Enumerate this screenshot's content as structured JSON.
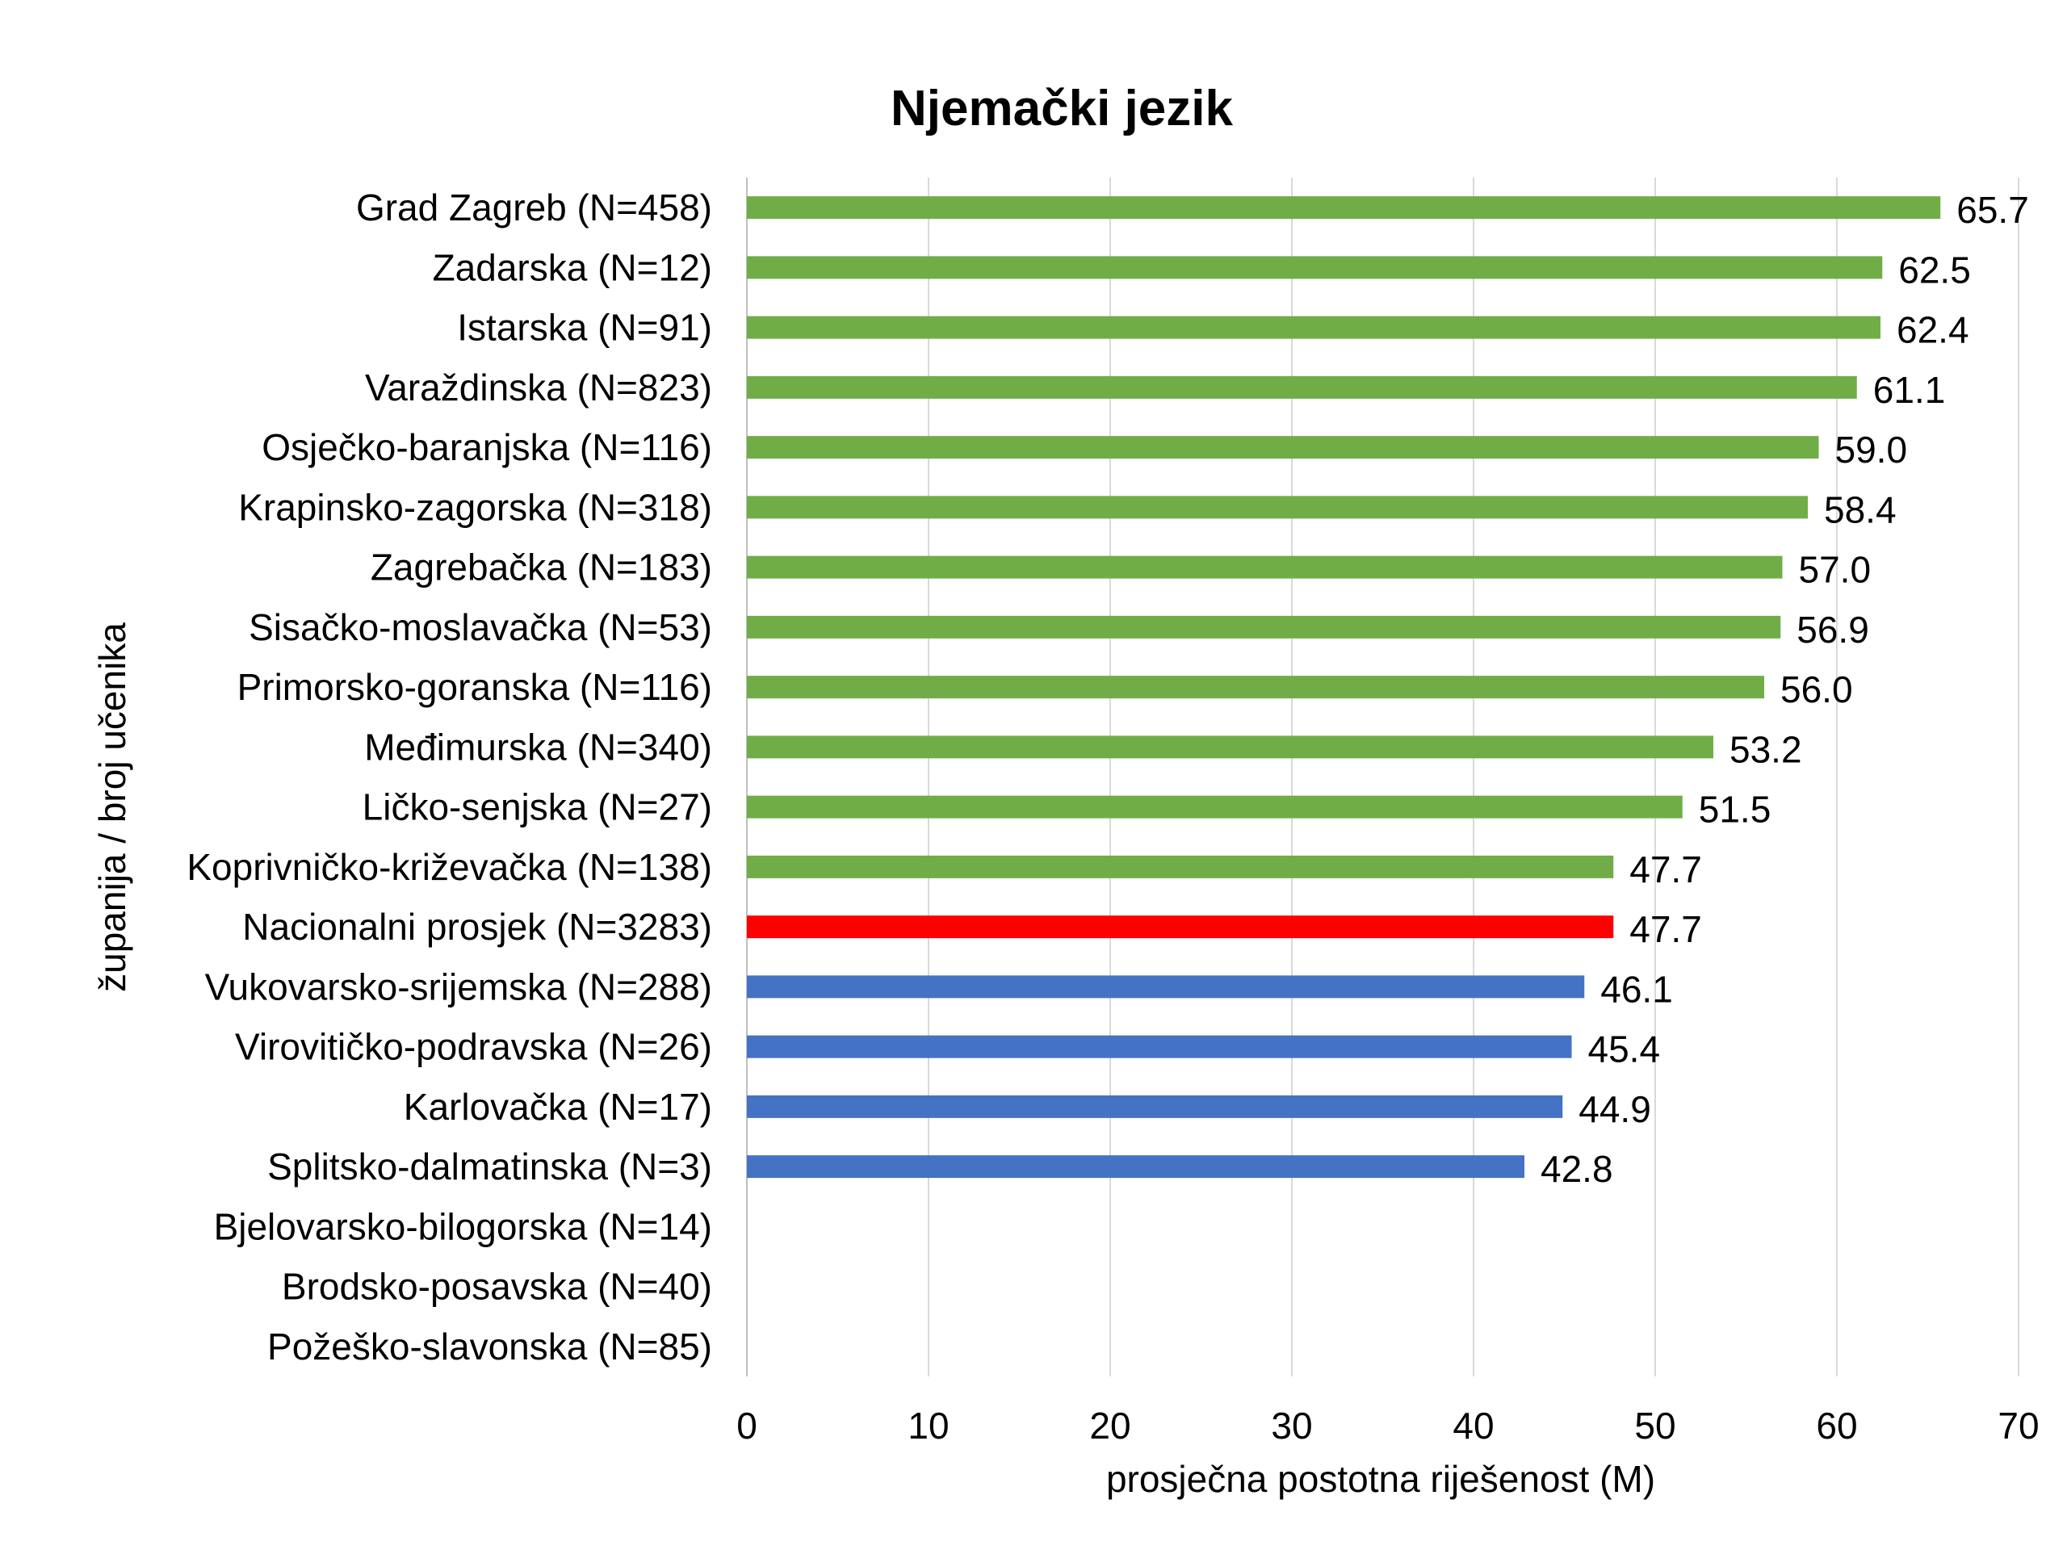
{
  "chart_data": {
    "type": "bar",
    "orientation": "horizontal",
    "title": "Njemački jezik",
    "xlabel": "prosječna postotna riješenost (M)",
    "ylabel": "županija / broj učenika",
    "xlim": [
      0,
      70
    ],
    "xticks": [
      "0",
      "10",
      "20",
      "30",
      "40",
      "50",
      "60",
      "70"
    ],
    "grid": "vertical",
    "legend": "none",
    "colors": {
      "above": "#70ad47",
      "national": "#ff0000",
      "below": "#4472c4"
    },
    "categories": [
      "Grad Zagreb (N=458)",
      "Zadarska (N=12)",
      "Istarska (N=91)",
      "Varaždinska (N=823)",
      "Osječko-baranjska (N=116)",
      "Krapinsko-zagorska (N=318)",
      "Zagrebačka (N=183)",
      "Sisačko-moslavačka (N=53)",
      "Primorsko-goranska (N=116)",
      "Međimurska (N=340)",
      "Ličko-senjska (N=27)",
      "Koprivničko-križevačka (N=138)",
      "Nacionalni prosjek (N=3283)",
      "Vukovarsko-srijemska (N=288)",
      "Virovitičko-podravska (N=26)",
      "Karlovačka (N=17)",
      "Splitsko-dalmatinska (N=3)",
      "Bjelovarsko-bilogorska (N=14)",
      "Brodsko-posavska (N=40)",
      "Požeško-slavonska (N=85)"
    ],
    "values": [
      65.7,
      62.5,
      62.4,
      61.1,
      59.0,
      58.4,
      57.0,
      56.9,
      56.0,
      53.2,
      51.5,
      47.7,
      47.7,
      46.1,
      45.4,
      44.9,
      42.8,
      null,
      null,
      null
    ],
    "value_labels": [
      "65.7",
      "62.5",
      "62.4",
      "61.1",
      "59.0",
      "58.4",
      "57.0",
      "56.9",
      "56.0",
      "53.2",
      "51.5",
      "47.7",
      "47.7",
      "46.1",
      "45.4",
      "44.9",
      "42.8",
      "",
      "",
      ""
    ],
    "groups": [
      "above",
      "above",
      "above",
      "above",
      "above",
      "above",
      "above",
      "above",
      "above",
      "above",
      "above",
      "above",
      "national",
      "below",
      "below",
      "below",
      "below",
      "none",
      "none",
      "none"
    ]
  }
}
